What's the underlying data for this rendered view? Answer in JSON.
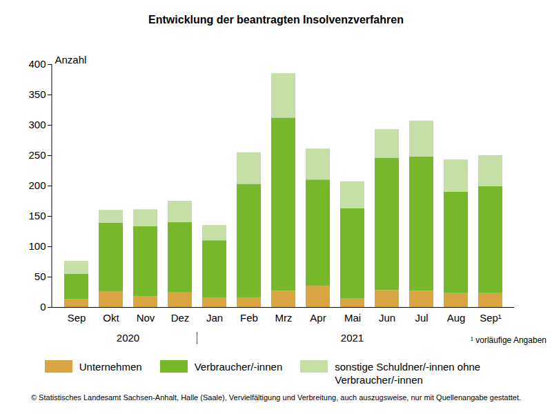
{
  "chart_data": {
    "type": "bar",
    "title": "Entwicklung der beantragten Insolvenzverfahren",
    "y_label": "Anzahl",
    "categories": [
      "Sep",
      "Okt",
      "Nov",
      "Dez",
      "Jan",
      "Feb",
      "Mrz",
      "Apr",
      "Mai",
      "Jun",
      "Jul",
      "Aug",
      "Sep¹"
    ],
    "category_years": [
      "2020",
      "2020",
      "2020",
      "2020",
      "2021",
      "2021",
      "2021",
      "2021",
      "2021",
      "2021",
      "2021",
      "2021",
      "2021"
    ],
    "footnote": "¹ vorläufige Angaben",
    "source": "© Statistisches Landesamt Sachsen-Anhalt, Halle (Saale), Vervielfältigung und Verbreitung, auch auszugsweise, nur mit Quellenangabe gestattet.",
    "stacked": true,
    "grid": false,
    "legend": "bottom",
    "ylim": [
      0,
      400
    ],
    "yticks": [
      0,
      50,
      100,
      150,
      200,
      250,
      300,
      350,
      400
    ],
    "series": [
      {
        "name": "Unternehmen",
        "color": "#d9a441",
        "values": [
          13,
          26,
          18,
          25,
          16,
          16,
          27,
          35,
          14,
          28,
          27,
          23,
          23
        ]
      },
      {
        "name": "Verbraucher/-innen",
        "color": "#76b82a",
        "values": [
          42,
          113,
          115,
          115,
          94,
          187,
          285,
          175,
          149,
          218,
          221,
          167,
          176
        ]
      },
      {
        "name": "sonstige Schuldner/-innen ohne Verbraucher/-innen",
        "color": "#c5dfa5",
        "values": [
          21,
          21,
          28,
          35,
          25,
          52,
          73,
          51,
          44,
          47,
          59,
          53,
          51
        ]
      }
    ]
  }
}
